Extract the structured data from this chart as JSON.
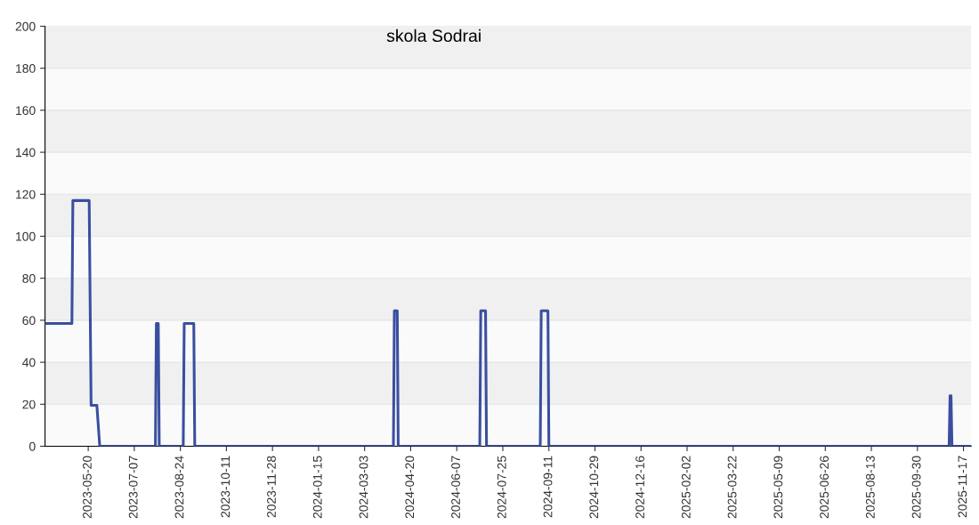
{
  "chart_data": {
    "type": "line",
    "title": "skola Sodrai",
    "x": [
      "2023-04-05",
      "2023-05-03",
      "2023-05-04",
      "2023-05-21",
      "2023-05-23",
      "2023-05-29",
      "2023-06-01",
      "2023-07-29",
      "2023-07-30",
      "2023-08-01",
      "2023-08-02",
      "2023-08-27",
      "2023-08-28",
      "2023-09-07",
      "2023-09-08",
      "2024-04-02",
      "2024-04-03",
      "2024-04-06",
      "2024-04-07",
      "2024-07-01",
      "2024-07-02",
      "2024-07-07",
      "2024-07-08",
      "2024-09-02",
      "2024-09-03",
      "2024-09-10",
      "2024-09-11",
      "2025-11-02",
      "2025-11-03",
      "2025-11-04",
      "2025-11-05",
      "2025-11-25"
    ],
    "series": [
      {
        "color": "#3a4fa0",
        "values": [
          58.5,
          58.5,
          117,
          117,
          19.5,
          19.5,
          0,
          0,
          58.5,
          58.5,
          0,
          0,
          58.5,
          58.5,
          0,
          0,
          64.5,
          64.5,
          0,
          0,
          64.5,
          64.5,
          0,
          0,
          64.5,
          64.5,
          0,
          0,
          24,
          24,
          0,
          0
        ]
      }
    ],
    "xlim": [
      "2023-04-05",
      "2025-11-25"
    ],
    "xticks": [
      {
        "value": "2023-05-20",
        "label": "2023-05-20"
      },
      {
        "value": "2023-07-07",
        "label": "2023-07-07"
      },
      {
        "value": "2023-08-24",
        "label": "2023-08-24"
      },
      {
        "value": "2023-10-11",
        "label": "2023-10-11"
      },
      {
        "value": "2023-11-28",
        "label": "2023-11-28"
      },
      {
        "value": "2024-01-15",
        "label": "2024-01-15"
      },
      {
        "value": "2024-03-03",
        "label": "2024-03-03"
      },
      {
        "value": "2024-04-20",
        "label": "2024-04-20"
      },
      {
        "value": "2024-06-07",
        "label": "2024-06-07"
      },
      {
        "value": "2024-07-25",
        "label": "2024-07-25"
      },
      {
        "value": "2024-09-11",
        "label": "2024-09-11"
      },
      {
        "value": "2024-10-29",
        "label": "2024-10-29"
      },
      {
        "value": "2024-12-16",
        "label": "2024-12-16"
      },
      {
        "value": "2025-02-02",
        "label": "2025-02-02"
      },
      {
        "value": "2025-03-22",
        "label": "2025-03-22"
      },
      {
        "value": "2025-05-09",
        "label": "2025-05-09"
      },
      {
        "value": "2025-06-26",
        "label": "2025-06-26"
      },
      {
        "value": "2025-08-13",
        "label": "2025-08-13"
      },
      {
        "value": "2025-09-30",
        "label": "2025-09-30"
      },
      {
        "value": "2025-11-17",
        "label": "2025-11-17"
      }
    ],
    "ylim": [
      0,
      200
    ],
    "yticks": [
      0,
      20,
      40,
      60,
      80,
      100,
      120,
      140,
      160,
      180,
      200
    ],
    "grid": "y",
    "marker": "none",
    "line_style": "solid"
  }
}
